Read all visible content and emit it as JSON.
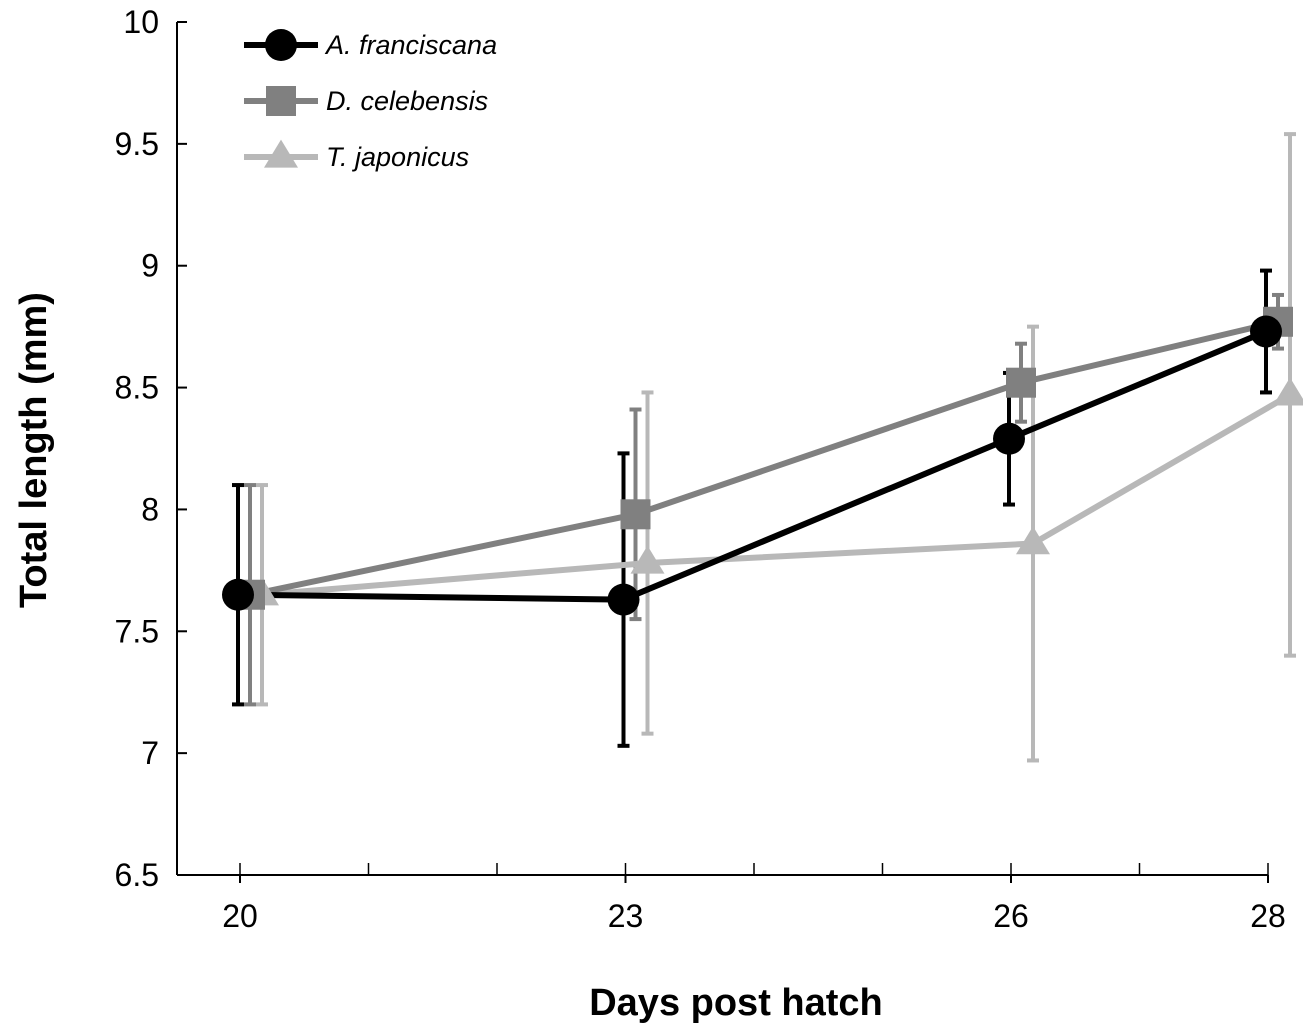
{
  "chart_data": {
    "type": "line",
    "xlabel": "Days post hatch",
    "ylabel": "Total length (mm)",
    "x": [
      20,
      23,
      26,
      28
    ],
    "x_tick_labels": [
      "20",
      "23",
      "26",
      "28"
    ],
    "ylim": [
      6.5,
      10
    ],
    "y_ticks": [
      "6.5",
      "7",
      "7.5",
      "8",
      "8.5",
      "9",
      "9.5",
      "10"
    ],
    "grid": false,
    "legend_position": "top-left",
    "series": [
      {
        "name": "A. franciscana",
        "marker": "circle",
        "color": "#000000",
        "values": [
          7.65,
          7.63,
          8.29,
          8.73
        ],
        "error": [
          0.45,
          0.6,
          0.27,
          0.25
        ]
      },
      {
        "name": "D. celebensis",
        "marker": "square",
        "color": "#808080",
        "values": [
          7.65,
          7.98,
          8.52,
          8.77
        ],
        "error": [
          0.45,
          0.43,
          0.16,
          0.11
        ]
      },
      {
        "name": "T. japonicus",
        "marker": "triangle",
        "color": "#b8b8b8",
        "values": [
          7.65,
          7.78,
          7.86,
          8.47
        ],
        "error": [
          0.45,
          0.7,
          0.89,
          1.07
        ]
      }
    ]
  }
}
